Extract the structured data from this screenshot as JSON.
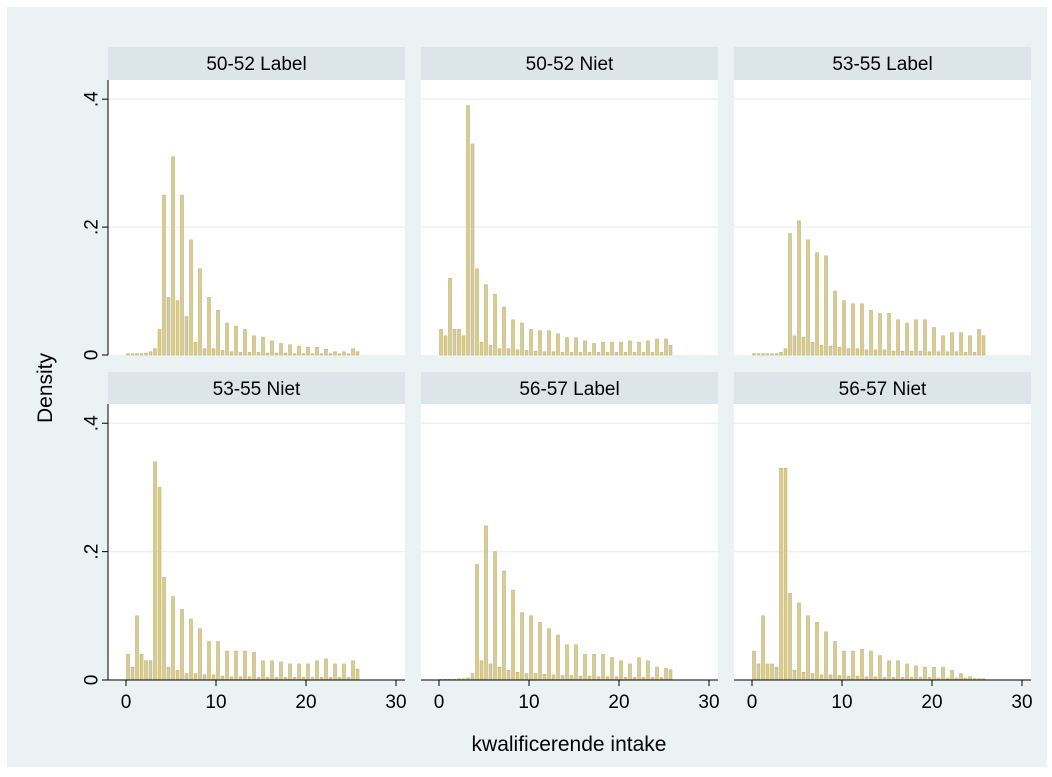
{
  "colors": {
    "outer_background": "#eaf2f3",
    "plot_background": "#ffffff",
    "strip_background": "#dce6ea",
    "gridline": "#eaf2f3",
    "bar_fill": "#d8cc93",
    "bar_stroke": "#b9ac6b"
  },
  "chart_data": {
    "type": "bar",
    "subtype": "histogram-small-multiples",
    "xlabel": "kwalificerende intake",
    "ylabel": "Density",
    "xlim": [
      -2,
      31
    ],
    "ylim": [
      0,
      0.43
    ],
    "xticks": [
      0,
      10,
      20,
      30
    ],
    "xtick_labels": [
      "0",
      "10",
      "20",
      "30"
    ],
    "yticks": [
      0,
      0.2,
      0.4
    ],
    "ytick_labels": [
      "0",
      ".2",
      ".4"
    ],
    "grid": true,
    "bin_width": 0.5,
    "bin_start": 0,
    "panels": [
      {
        "title": "50-52 Label",
        "values": [
          0.002,
          0.002,
          0.002,
          0.002,
          0.003,
          0.005,
          0.01,
          0.04,
          0.25,
          0.09,
          0.31,
          0.085,
          0.25,
          0.06,
          0.18,
          0.02,
          0.135,
          0.01,
          0.09,
          0.01,
          0.07,
          0.007,
          0.05,
          0.005,
          0.045,
          0.004,
          0.04,
          0.004,
          0.03,
          0.004,
          0.028,
          0.003,
          0.022,
          0.003,
          0.018,
          0.003,
          0.016,
          0.002,
          0.014,
          0.002,
          0.012,
          0.002,
          0.012,
          0.002,
          0.009,
          0.002,
          0.005,
          0.002,
          0.005,
          0.002,
          0.01,
          0.005
        ]
      },
      {
        "title": "50-52 Niet",
        "values": [
          0.04,
          0.03,
          0.12,
          0.04,
          0.04,
          0.03,
          0.39,
          0.33,
          0.135,
          0.02,
          0.11,
          0.015,
          0.095,
          0.01,
          0.075,
          0.01,
          0.055,
          0.008,
          0.05,
          0.007,
          0.04,
          0.006,
          0.038,
          0.005,
          0.038,
          0.005,
          0.033,
          0.004,
          0.027,
          0.004,
          0.027,
          0.004,
          0.022,
          0.004,
          0.018,
          0.004,
          0.02,
          0.004,
          0.02,
          0.004,
          0.02,
          0.004,
          0.022,
          0.004,
          0.02,
          0.004,
          0.022,
          0.004,
          0.025,
          0.004,
          0.025,
          0.015
        ]
      },
      {
        "title": "53-55 Label",
        "values": [
          0.002,
          0.002,
          0.002,
          0.002,
          0.002,
          0.002,
          0.004,
          0.01,
          0.19,
          0.03,
          0.21,
          0.028,
          0.18,
          0.02,
          0.16,
          0.015,
          0.155,
          0.014,
          0.1,
          0.012,
          0.085,
          0.01,
          0.08,
          0.01,
          0.08,
          0.008,
          0.07,
          0.008,
          0.065,
          0.008,
          0.065,
          0.006,
          0.055,
          0.006,
          0.05,
          0.006,
          0.055,
          0.006,
          0.055,
          0.005,
          0.043,
          0.005,
          0.03,
          0.005,
          0.035,
          0.005,
          0.035,
          0.004,
          0.03,
          0.004,
          0.04,
          0.03
        ]
      },
      {
        "title": "53-55 Niet",
        "values": [
          0.04,
          0.02,
          0.1,
          0.04,
          0.03,
          0.03,
          0.34,
          0.3,
          0.16,
          0.02,
          0.13,
          0.015,
          0.11,
          0.01,
          0.095,
          0.01,
          0.08,
          0.008,
          0.06,
          0.008,
          0.06,
          0.006,
          0.045,
          0.005,
          0.045,
          0.005,
          0.045,
          0.005,
          0.043,
          0.004,
          0.03,
          0.004,
          0.03,
          0.004,
          0.028,
          0.004,
          0.025,
          0.004,
          0.025,
          0.004,
          0.025,
          0.004,
          0.03,
          0.004,
          0.033,
          0.004,
          0.025,
          0.004,
          0.025,
          0.004,
          0.03,
          0.017
        ]
      },
      {
        "title": "56-57 Label",
        "values": [
          0.001,
          0.001,
          0.001,
          0.001,
          0.002,
          0.002,
          0.003,
          0.01,
          0.18,
          0.03,
          0.24,
          0.025,
          0.2,
          0.02,
          0.17,
          0.015,
          0.14,
          0.012,
          0.105,
          0.01,
          0.1,
          0.01,
          0.09,
          0.009,
          0.08,
          0.008,
          0.07,
          0.007,
          0.055,
          0.007,
          0.055,
          0.006,
          0.04,
          0.006,
          0.04,
          0.005,
          0.04,
          0.005,
          0.035,
          0.005,
          0.03,
          0.004,
          0.025,
          0.004,
          0.035,
          0.004,
          0.03,
          0.004,
          0.02,
          0.004,
          0.018,
          0.016
        ]
      },
      {
        "title": "56-57 Niet",
        "values": [
          0.045,
          0.025,
          0.1,
          0.025,
          0.025,
          0.02,
          0.33,
          0.33,
          0.135,
          0.015,
          0.12,
          0.012,
          0.1,
          0.01,
          0.09,
          0.008,
          0.075,
          0.008,
          0.06,
          0.007,
          0.045,
          0.006,
          0.045,
          0.006,
          0.048,
          0.005,
          0.045,
          0.005,
          0.038,
          0.004,
          0.03,
          0.004,
          0.03,
          0.004,
          0.025,
          0.004,
          0.022,
          0.004,
          0.02,
          0.004,
          0.02,
          0.003,
          0.02,
          0.003,
          0.015,
          0.003,
          0.01,
          0.003,
          0.005,
          0.002,
          0.002,
          0.002
        ]
      }
    ]
  }
}
